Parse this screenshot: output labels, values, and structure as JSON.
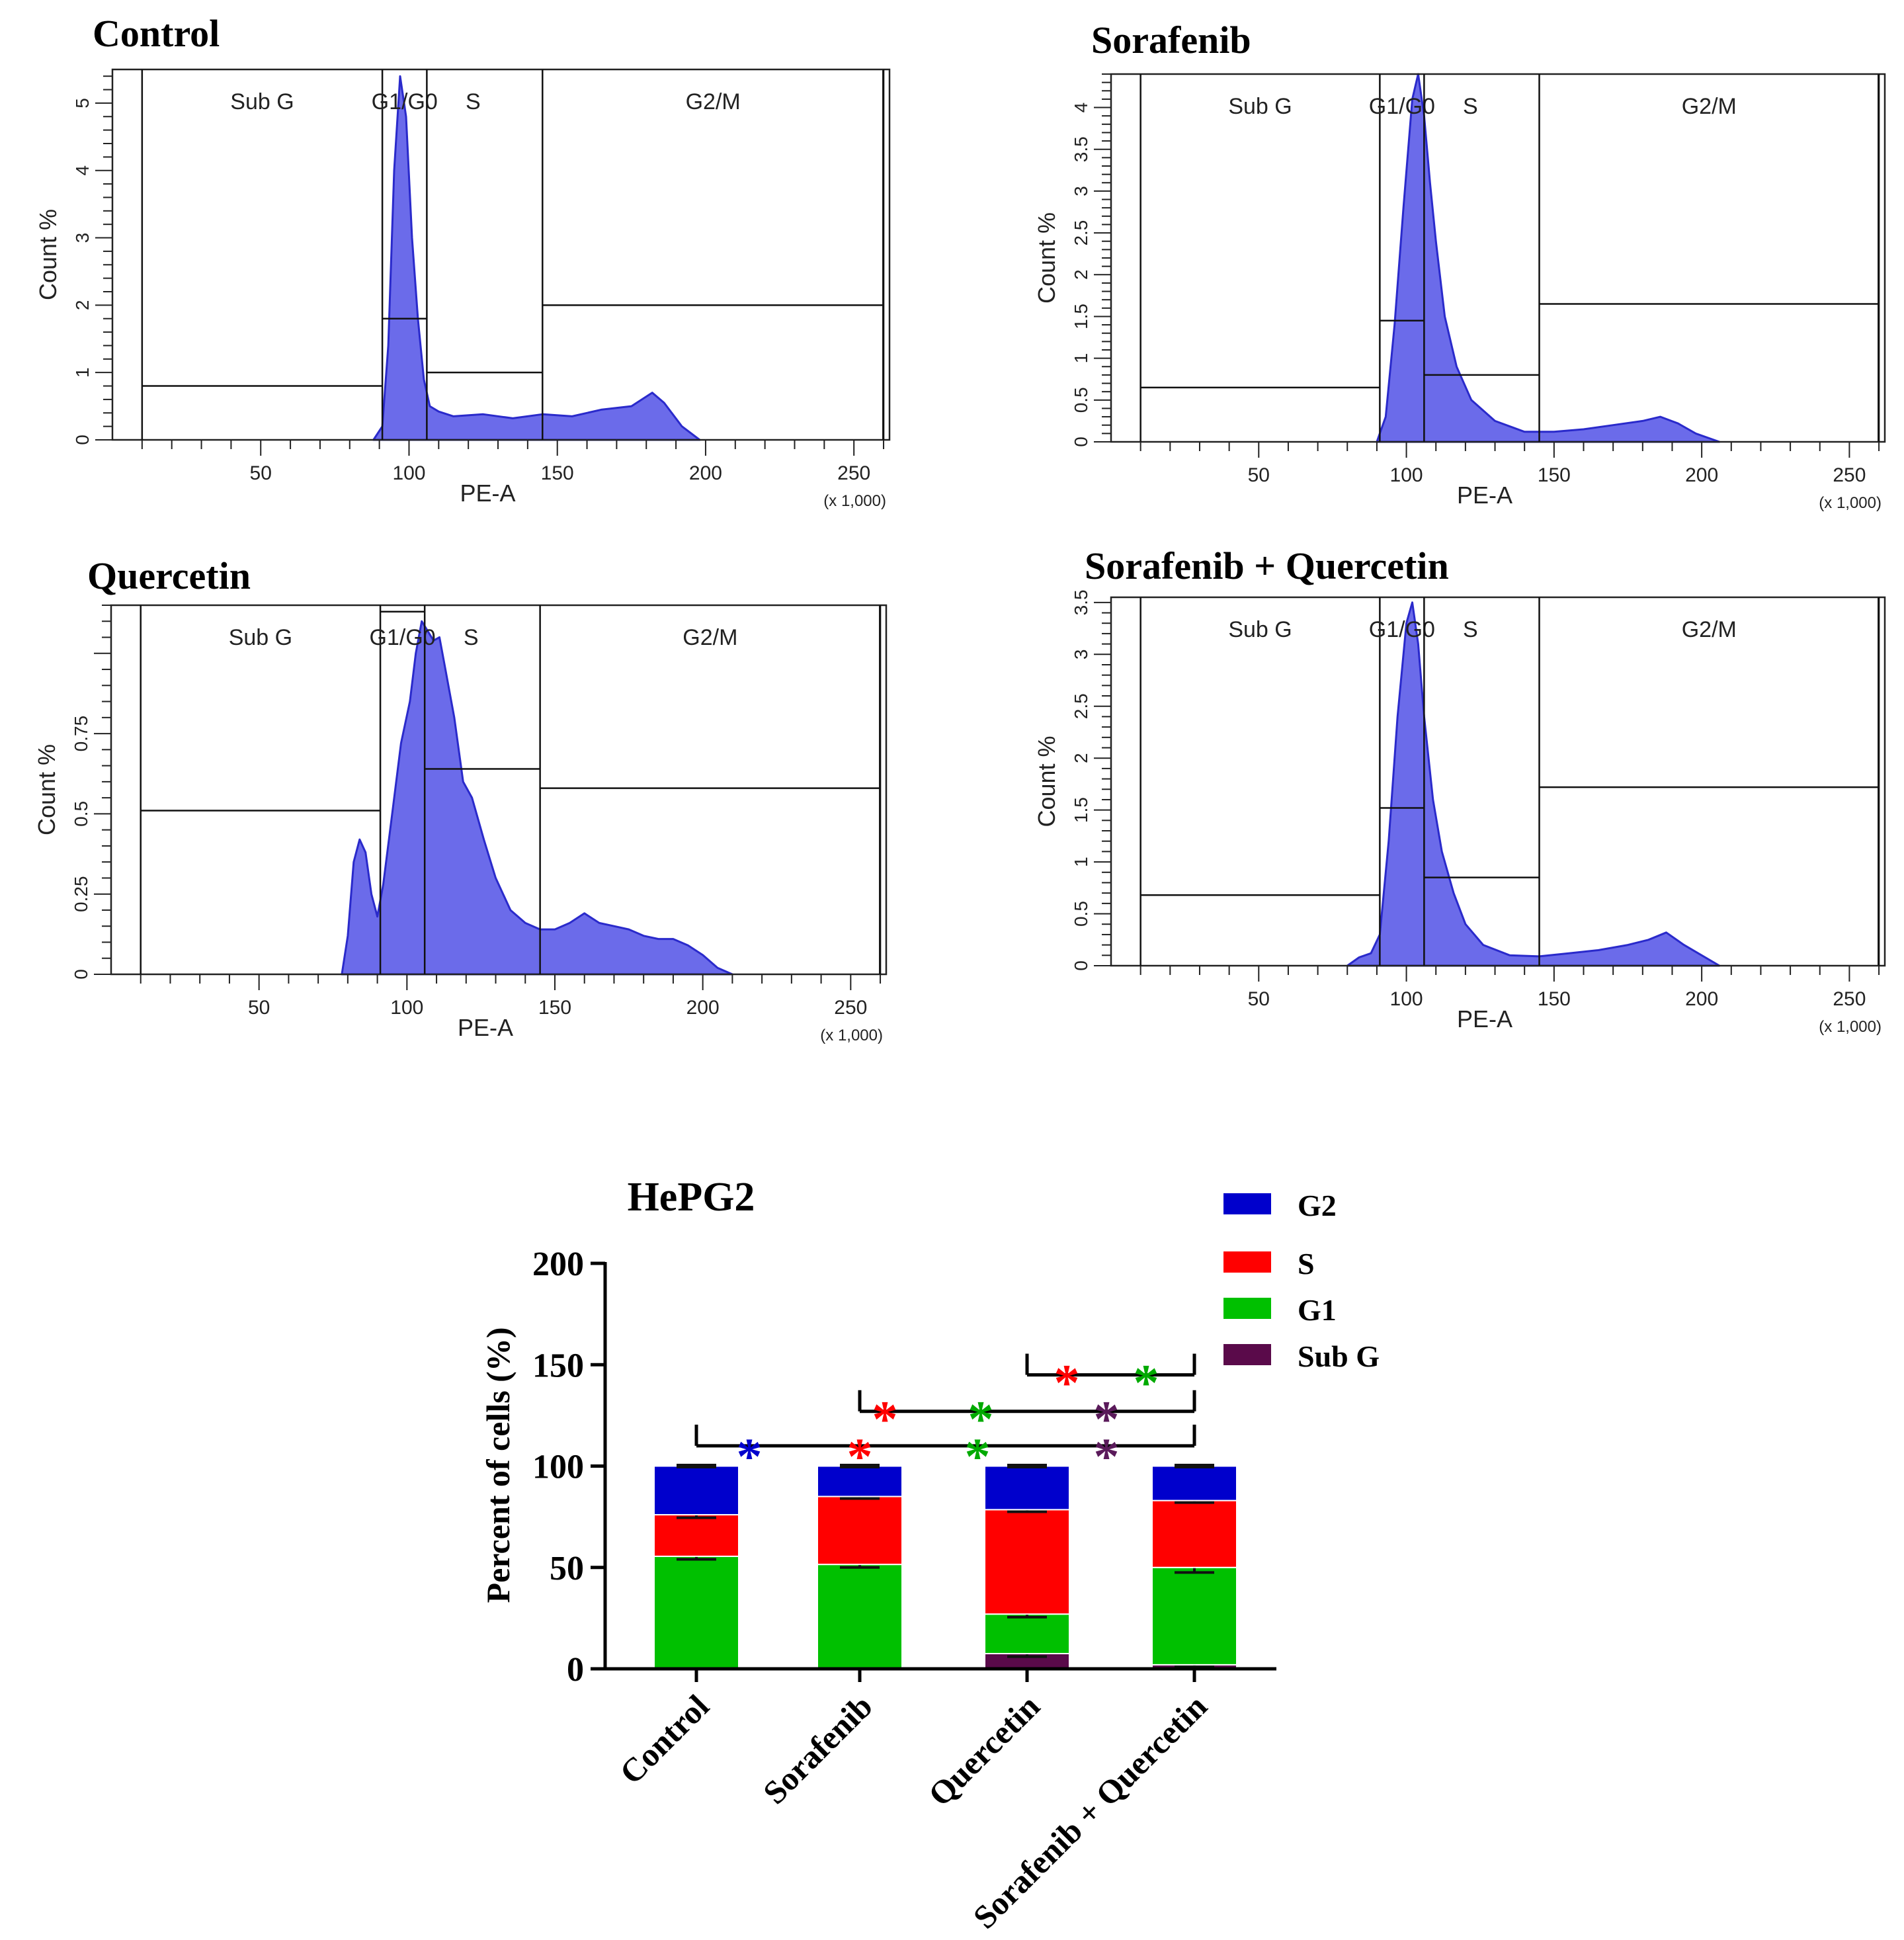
{
  "chart_data": [
    {
      "type": "histogram",
      "title": "Control",
      "xlabel": "PE-A",
      "xscale_note": "(x 1,000)",
      "ylabel": "Count %",
      "xlim": [
        0,
        262
      ],
      "ylim": [
        0,
        5.5
      ],
      "xticks": [
        50,
        100,
        150,
        200,
        250
      ],
      "yticks": [
        0,
        1,
        2,
        3,
        4,
        5
      ],
      "gates": [
        {
          "label": "Sub G",
          "x": [
            10,
            91
          ],
          "y": 0.8
        },
        {
          "label": "G1/G0",
          "x": [
            91,
            106
          ],
          "y": 1.8
        },
        {
          "label": "S",
          "x": [
            106,
            145
          ],
          "y": 1.0
        },
        {
          "label": "G2/M",
          "x": [
            145,
            260
          ],
          "y": 2.0
        }
      ],
      "profile": [
        [
          88,
          0
        ],
        [
          91,
          0.2
        ],
        [
          93,
          1.4
        ],
        [
          95,
          4.0
        ],
        [
          97,
          5.4
        ],
        [
          99,
          4.8
        ],
        [
          101,
          3.0
        ],
        [
          103,
          1.8
        ],
        [
          105,
          0.9
        ],
        [
          107,
          0.5
        ],
        [
          110,
          0.42
        ],
        [
          115,
          0.35
        ],
        [
          125,
          0.38
        ],
        [
          135,
          0.32
        ],
        [
          145,
          0.38
        ],
        [
          155,
          0.35
        ],
        [
          165,
          0.45
        ],
        [
          175,
          0.5
        ],
        [
          182,
          0.7
        ],
        [
          186,
          0.55
        ],
        [
          192,
          0.2
        ],
        [
          198,
          0
        ]
      ]
    },
    {
      "type": "histogram",
      "title": "Sorafenib",
      "xlabel": "PE-A",
      "xscale_note": "(x 1,000)",
      "ylabel": "Count %",
      "xlim": [
        0,
        262
      ],
      "ylim": [
        0,
        4.4
      ],
      "xticks": [
        50,
        100,
        150,
        200,
        250
      ],
      "yticks": [
        0,
        0.5,
        1,
        1.5,
        2,
        2.5,
        3,
        3.5,
        4
      ],
      "gates": [
        {
          "label": "Sub G",
          "x": [
            10,
            91
          ],
          "y": 0.65
        },
        {
          "label": "G1/G0",
          "x": [
            91,
            106
          ],
          "y": 1.45
        },
        {
          "label": "S",
          "x": [
            106,
            145
          ],
          "y": 0.8
        },
        {
          "label": "G2/M",
          "x": [
            145,
            260
          ],
          "y": 1.65
        }
      ],
      "profile": [
        [
          90,
          0
        ],
        [
          93,
          0.3
        ],
        [
          96,
          1.4
        ],
        [
          99,
          2.8
        ],
        [
          102,
          4.1
        ],
        [
          104,
          4.4
        ],
        [
          106,
          3.9
        ],
        [
          108,
          3.1
        ],
        [
          110,
          2.4
        ],
        [
          113,
          1.5
        ],
        [
          117,
          0.9
        ],
        [
          122,
          0.5
        ],
        [
          130,
          0.25
        ],
        [
          140,
          0.12
        ],
        [
          150,
          0.12
        ],
        [
          160,
          0.15
        ],
        [
          170,
          0.2
        ],
        [
          180,
          0.25
        ],
        [
          186,
          0.3
        ],
        [
          192,
          0.22
        ],
        [
          198,
          0.1
        ],
        [
          206,
          0
        ]
      ]
    },
    {
      "type": "histogram",
      "title": "Quercetin",
      "xlabel": "PE-A",
      "xscale_note": "(x 1,000)",
      "ylabel": "Count %",
      "xlim": [
        0,
        262
      ],
      "ylim": [
        0,
        1.15
      ],
      "xticks": [
        50,
        100,
        150,
        200,
        250
      ],
      "yticks": [
        0,
        0.25,
        0.5,
        0.75
      ],
      "gates": [
        {
          "label": "Sub G",
          "x": [
            10,
            91
          ],
          "y": 0.51
        },
        {
          "label": "G1/G0",
          "x": [
            91,
            106
          ],
          "y": 1.13
        },
        {
          "label": "S",
          "x": [
            106,
            145
          ],
          "y": 0.64
        },
        {
          "label": "G2/M",
          "x": [
            145,
            260
          ],
          "y": 0.58
        }
      ],
      "profile": [
        [
          78,
          0
        ],
        [
          80,
          0.12
        ],
        [
          82,
          0.35
        ],
        [
          84,
          0.42
        ],
        [
          86,
          0.38
        ],
        [
          88,
          0.25
        ],
        [
          90,
          0.18
        ],
        [
          92,
          0.28
        ],
        [
          95,
          0.5
        ],
        [
          98,
          0.72
        ],
        [
          101,
          0.85
        ],
        [
          103,
          1.0
        ],
        [
          105,
          1.1
        ],
        [
          107,
          1.07
        ],
        [
          109,
          1.04
        ],
        [
          111,
          1.05
        ],
        [
          113,
          0.95
        ],
        [
          116,
          0.8
        ],
        [
          119,
          0.6
        ],
        [
          122,
          0.55
        ],
        [
          126,
          0.42
        ],
        [
          130,
          0.3
        ],
        [
          135,
          0.2
        ],
        [
          140,
          0.16
        ],
        [
          145,
          0.14
        ],
        [
          150,
          0.14
        ],
        [
          155,
          0.16
        ],
        [
          160,
          0.19
        ],
        [
          165,
          0.16
        ],
        [
          170,
          0.15
        ],
        [
          175,
          0.14
        ],
        [
          180,
          0.12
        ],
        [
          185,
          0.11
        ],
        [
          190,
          0.11
        ],
        [
          195,
          0.09
        ],
        [
          200,
          0.06
        ],
        [
          205,
          0.02
        ],
        [
          210,
          0
        ]
      ]
    },
    {
      "type": "histogram",
      "title": "Sorafenib + Quercetin",
      "xlabel": "PE-A",
      "xscale_note": "(x 1,000)",
      "ylabel": "Count %",
      "xlim": [
        0,
        262
      ],
      "ylim": [
        0,
        3.55
      ],
      "xticks": [
        50,
        100,
        150,
        200,
        250
      ],
      "yticks": [
        0,
        0.5,
        1,
        1.5,
        2,
        2.5,
        3,
        3.5
      ],
      "gates": [
        {
          "label": "Sub G",
          "x": [
            10,
            91
          ],
          "y": 0.68
        },
        {
          "label": "G1/G0",
          "x": [
            91,
            106
          ],
          "y": 1.52
        },
        {
          "label": "S",
          "x": [
            106,
            145
          ],
          "y": 0.85
        },
        {
          "label": "G2/M",
          "x": [
            145,
            260
          ],
          "y": 1.72
        }
      ],
      "profile": [
        [
          80,
          0
        ],
        [
          84,
          0.08
        ],
        [
          88,
          0.12
        ],
        [
          91,
          0.3
        ],
        [
          94,
          1.2
        ],
        [
          97,
          2.4
        ],
        [
          100,
          3.3
        ],
        [
          102,
          3.5
        ],
        [
          104,
          3.1
        ],
        [
          106,
          2.4
        ],
        [
          109,
          1.6
        ],
        [
          112,
          1.1
        ],
        [
          116,
          0.7
        ],
        [
          120,
          0.4
        ],
        [
          126,
          0.2
        ],
        [
          135,
          0.1
        ],
        [
          145,
          0.09
        ],
        [
          155,
          0.12
        ],
        [
          165,
          0.15
        ],
        [
          175,
          0.2
        ],
        [
          182,
          0.25
        ],
        [
          188,
          0.32
        ],
        [
          194,
          0.2
        ],
        [
          200,
          0.1
        ],
        [
          206,
          0
        ]
      ]
    },
    {
      "type": "bar",
      "stacked": true,
      "title": "HePG2",
      "xlabel": "",
      "ylabel": "Percent of  cells (%)",
      "ylim": [
        0,
        200
      ],
      "yticks": [
        0,
        50,
        100,
        150,
        200
      ],
      "categories": [
        "Control",
        "Sorafenib",
        "Quercetin",
        "Sorafenib + Quercetin"
      ],
      "series": [
        {
          "name": "Sub G",
          "color": "#5a0a4a",
          "values": [
            0.5,
            0.5,
            7.5,
            2
          ],
          "errors": [
            0,
            0,
            1.5,
            1
          ]
        },
        {
          "name": "G1",
          "color": "#00c000",
          "values": [
            55,
            51,
            19.5,
            48
          ],
          "errors": [
            1.5,
            1.5,
            1.5,
            2.5
          ]
        },
        {
          "name": "S",
          "color": "#ff0000",
          "values": [
            20.5,
            33.5,
            51.5,
            33
          ],
          "errors": [
            1.5,
            1.0,
            1.0,
            1.0
          ]
        },
        {
          "name": "G2",
          "color": "#0000cc",
          "values": [
            24,
            15,
            21.5,
            17
          ],
          "errors": [
            0.5,
            0.5,
            0.5,
            0.5
          ]
        }
      ],
      "legend_order": [
        "G2",
        "S",
        "G1",
        "Sub G"
      ],
      "significance": [
        {
          "from": "Control",
          "to": "Sorafenib + Quercetin",
          "level": 110,
          "stars": [
            {
              "symbol": "*",
              "color": "#0000cc"
            },
            {
              "symbol": "*",
              "color": "#ff0000"
            },
            {
              "symbol": "*",
              "color": "#00aa00"
            },
            {
              "symbol": "*",
              "color": "#5a1a5a"
            }
          ]
        },
        {
          "from": "Sorafenib",
          "to": "Sorafenib + Quercetin",
          "level": 127,
          "stars": [
            {
              "symbol": "*",
              "color": "#ff0000"
            },
            {
              "symbol": "*",
              "color": "#00aa00"
            },
            {
              "symbol": "*",
              "color": "#5a1a5a"
            }
          ]
        },
        {
          "from": "Quercetin",
          "to": "Sorafenib + Quercetin",
          "level": 145,
          "stars": [
            {
              "symbol": "*",
              "color": "#ff0000"
            },
            {
              "symbol": "*",
              "color": "#00aa00"
            }
          ]
        }
      ]
    }
  ]
}
